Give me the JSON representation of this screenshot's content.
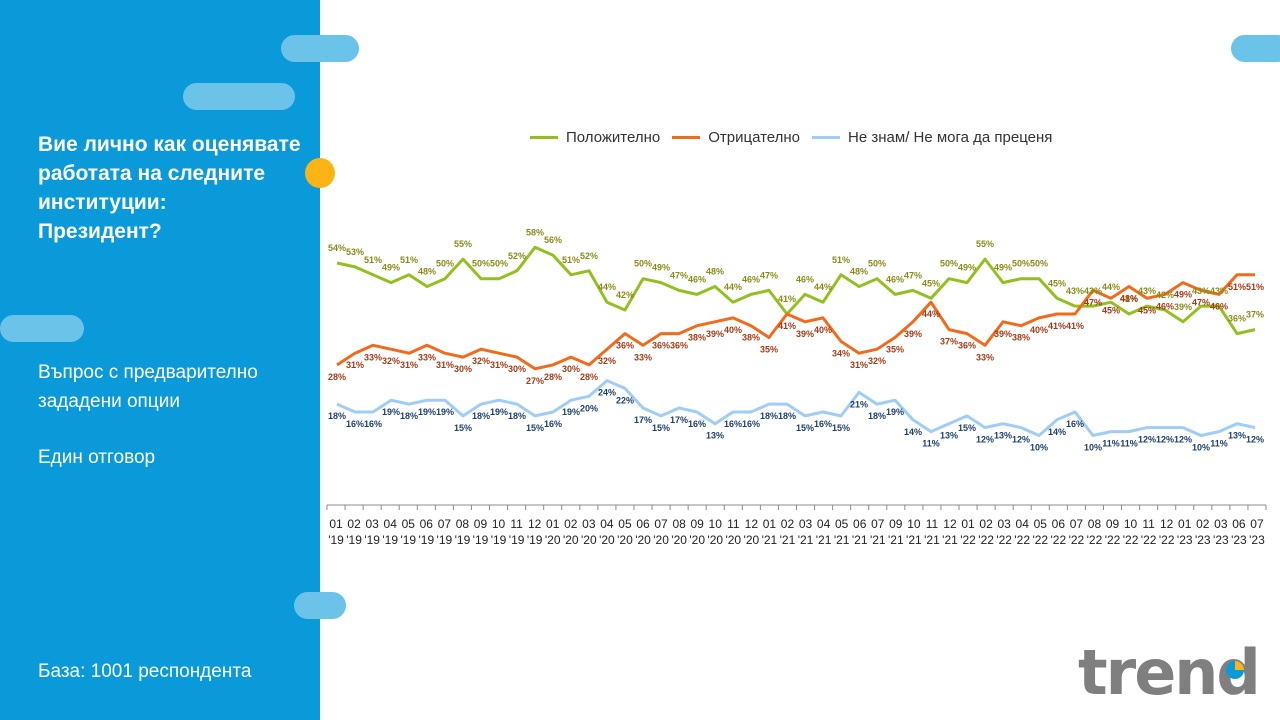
{
  "panel": {
    "question_lines": [
      "Вие лично как оценявате",
      "работата на следните",
      "институции:",
      "Президент?"
    ],
    "subtitle_lines": [
      "Въпрос  с предварително",
      "зададени опции"
    ],
    "answer_type": "Един отговор",
    "base": "База:  1001 респондента"
  },
  "logo": {
    "text": "trend"
  },
  "colors": {
    "panel": "#0a9ad9",
    "positive": "#92c01f",
    "negative": "#f26a1b",
    "dont_know": "#9fcdf5",
    "positive_label": "#8a8a18",
    "negative_label": "#a33a16",
    "dont_know_label": "#1c3f6e"
  },
  "chart_data": {
    "type": "line",
    "categories": [
      [
        "01",
        "'19"
      ],
      [
        "02",
        "'19"
      ],
      [
        "03",
        "'19"
      ],
      [
        "04",
        "'19"
      ],
      [
        "05",
        "'19"
      ],
      [
        "06",
        "'19"
      ],
      [
        "07",
        "'19"
      ],
      [
        "08",
        "'19"
      ],
      [
        "09",
        "'19"
      ],
      [
        "10",
        "'19"
      ],
      [
        "11",
        "'19"
      ],
      [
        "12",
        "'19"
      ],
      [
        "01",
        "'20"
      ],
      [
        "02",
        "'20"
      ],
      [
        "03",
        "'20"
      ],
      [
        "04",
        "'20"
      ],
      [
        "05",
        "'20"
      ],
      [
        "06",
        "'20"
      ],
      [
        "07",
        "'20"
      ],
      [
        "08",
        "'20"
      ],
      [
        "09",
        "'20"
      ],
      [
        "10",
        "'20"
      ],
      [
        "11",
        "'20"
      ],
      [
        "12",
        "'20"
      ],
      [
        "01",
        "'21"
      ],
      [
        "02",
        "'21"
      ],
      [
        "03",
        "'21"
      ],
      [
        "04",
        "'21"
      ],
      [
        "05",
        "'21"
      ],
      [
        "06",
        "'21"
      ],
      [
        "07",
        "'21"
      ],
      [
        "09",
        "'21"
      ],
      [
        "10",
        "'21"
      ],
      [
        "11",
        "'21"
      ],
      [
        "12",
        "'21"
      ],
      [
        "01",
        "'22"
      ],
      [
        "02",
        "'22"
      ],
      [
        "03",
        "'22"
      ],
      [
        "04",
        "'22"
      ],
      [
        "05",
        "'22"
      ],
      [
        "06",
        "'22"
      ],
      [
        "07",
        "'22"
      ],
      [
        "08",
        "'22"
      ],
      [
        "09",
        "'22"
      ],
      [
        "10",
        "'22"
      ],
      [
        "11",
        "'22"
      ],
      [
        "12",
        "'22"
      ],
      [
        "01",
        "'23"
      ],
      [
        "02",
        "'23"
      ],
      [
        "03",
        "'23"
      ],
      [
        "06",
        "'23"
      ],
      [
        "07",
        "'23"
      ]
    ],
    "series": [
      {
        "name": "Положително",
        "values": [
          54,
          53,
          51,
          49,
          51,
          48,
          50,
          55,
          50,
          50,
          52,
          58,
          56,
          51,
          52,
          44,
          42,
          50,
          49,
          47,
          46,
          48,
          44,
          46,
          47,
          41,
          46,
          44,
          51,
          48,
          50,
          46,
          47,
          45,
          50,
          49,
          55,
          49,
          50,
          50,
          45,
          43,
          43,
          44,
          41,
          43,
          42,
          39,
          43,
          43,
          36,
          37
        ]
      },
      {
        "name": "Отрицателно",
        "values": [
          28,
          31,
          33,
          32,
          31,
          33,
          31,
          30,
          32,
          31,
          30,
          27,
          28,
          30,
          28,
          32,
          36,
          33,
          36,
          36,
          38,
          39,
          40,
          38,
          35,
          41,
          39,
          40,
          34,
          31,
          32,
          35,
          39,
          44,
          37,
          36,
          33,
          39,
          38,
          40,
          41,
          41,
          47,
          45,
          48,
          45,
          46,
          49,
          47,
          46,
          51,
          51
        ]
      },
      {
        "name": "Не знам/ Не мога да преценя",
        "values": [
          18,
          16,
          16,
          19,
          18,
          19,
          19,
          15,
          18,
          19,
          18,
          15,
          16,
          19,
          20,
          24,
          22,
          17,
          15,
          17,
          16,
          13,
          16,
          16,
          18,
          18,
          15,
          16,
          15,
          21,
          18,
          19,
          14,
          11,
          13,
          15,
          12,
          13,
          12,
          10,
          14,
          16,
          10,
          11,
          11,
          12,
          12,
          12,
          10,
          11,
          13,
          12
        ]
      }
    ],
    "legend_position": "top",
    "grid": false
  }
}
